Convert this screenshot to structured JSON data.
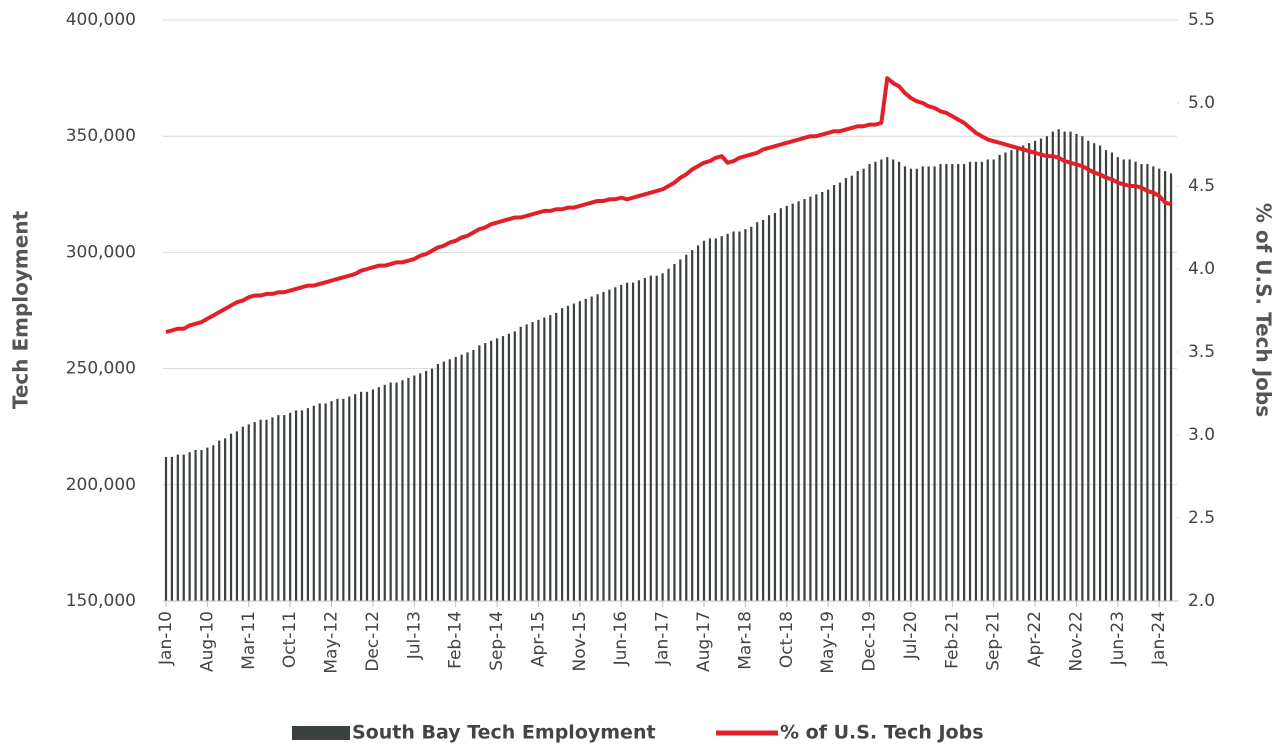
{
  "chart_data": {
    "type": "bar_line",
    "categories": [
      "Jan-10",
      null,
      null,
      null,
      null,
      null,
      null,
      "Aug-10",
      null,
      null,
      null,
      null,
      null,
      null,
      "Mar-11",
      null,
      null,
      null,
      null,
      null,
      null,
      "Oct-11",
      null,
      null,
      null,
      null,
      null,
      null,
      "May-12",
      null,
      null,
      null,
      null,
      null,
      null,
      "Dec-12",
      null,
      null,
      null,
      null,
      null,
      null,
      "Jul-13",
      null,
      null,
      null,
      null,
      null,
      null,
      "Feb-14",
      null,
      null,
      null,
      null,
      null,
      null,
      "Sep-14",
      null,
      null,
      null,
      null,
      null,
      null,
      "Apr-15",
      null,
      null,
      null,
      null,
      null,
      null,
      "Nov-15",
      null,
      null,
      null,
      null,
      null,
      null,
      "Jun-16",
      null,
      null,
      null,
      null,
      null,
      null,
      "Jan-17",
      null,
      null,
      null,
      null,
      null,
      null,
      "Aug-17",
      null,
      null,
      null,
      null,
      null,
      null,
      "Mar-18",
      null,
      null,
      null,
      null,
      null,
      null,
      "Oct-18",
      null,
      null,
      null,
      null,
      null,
      null,
      "May-19",
      null,
      null,
      null,
      null,
      null,
      null,
      "Dec-19",
      null,
      null,
      null,
      null,
      null,
      null,
      "Jul-20",
      null,
      null,
      null,
      null,
      null,
      null,
      "Feb-21",
      null,
      null,
      null,
      null,
      null,
      null,
      "Sep-21",
      null,
      null,
      null,
      null,
      null,
      null,
      "Apr-22",
      null,
      null,
      null,
      null,
      null,
      null,
      "Nov-22",
      null,
      null,
      null,
      null,
      null,
      null,
      "Jun-23",
      null,
      null,
      null,
      null,
      null,
      null,
      "Jan-24",
      null,
      null
    ],
    "series": [
      {
        "name": "South Bay Tech Employment",
        "color": "#3b413c",
        "kind": "bar",
        "values": [
          212000,
          212000,
          213000,
          213000,
          214000,
          215000,
          215000,
          216000,
          217000,
          219000,
          220000,
          222000,
          223000,
          225000,
          226000,
          227000,
          228000,
          228000,
          229000,
          230000,
          230000,
          231000,
          232000,
          232000,
          233000,
          234000,
          235000,
          235000,
          236000,
          237000,
          237000,
          238000,
          239000,
          240000,
          240000,
          241000,
          242000,
          243000,
          244000,
          244000,
          245000,
          246000,
          247000,
          248000,
          249000,
          250000,
          252000,
          253000,
          254000,
          255000,
          256000,
          257000,
          258000,
          260000,
          261000,
          262000,
          263000,
          264000,
          265000,
          266000,
          268000,
          269000,
          270000,
          271000,
          272000,
          273000,
          274000,
          276000,
          277000,
          278000,
          279000,
          280000,
          281000,
          282000,
          283000,
          284000,
          285000,
          286000,
          287000,
          287000,
          288000,
          289000,
          290000,
          290000,
          291000,
          293000,
          295000,
          297000,
          299000,
          301000,
          303000,
          305000,
          306000,
          306000,
          307000,
          308000,
          309000,
          309000,
          310000,
          311000,
          313000,
          314000,
          316000,
          317000,
          319000,
          320000,
          321000,
          322000,
          323000,
          324000,
          325000,
          326000,
          327000,
          329000,
          330000,
          332000,
          333000,
          335000,
          336000,
          338000,
          339000,
          340000,
          341000,
          340000,
          339000,
          337000,
          336000,
          336000,
          337000,
          337000,
          337000,
          338000,
          338000,
          338000,
          338000,
          338000,
          339000,
          339000,
          339000,
          340000,
          340000,
          342000,
          343000,
          344000,
          345000,
          346000,
          347000,
          348000,
          349000,
          350000,
          352000,
          353000,
          352000,
          352000,
          351000,
          350000,
          348000,
          347000,
          346000,
          344000,
          343000,
          341000,
          340000,
          340000,
          339000,
          338000,
          338000,
          337000,
          336000,
          335000,
          334000
        ]
      },
      {
        "name": "% of U.S. Tech Jobs",
        "color": "#e3202a",
        "kind": "line",
        "axis": "y2",
        "values": [
          3.62,
          3.63,
          3.64,
          3.64,
          3.66,
          3.67,
          3.68,
          3.7,
          3.72,
          3.74,
          3.76,
          3.78,
          3.8,
          3.81,
          3.83,
          3.84,
          3.84,
          3.85,
          3.85,
          3.86,
          3.86,
          3.87,
          3.88,
          3.89,
          3.9,
          3.9,
          3.91,
          3.92,
          3.93,
          3.94,
          3.95,
          3.96,
          3.97,
          3.99,
          4.0,
          4.01,
          4.02,
          4.02,
          4.03,
          4.04,
          4.04,
          4.05,
          4.06,
          4.08,
          4.09,
          4.11,
          4.13,
          4.14,
          4.16,
          4.17,
          4.19,
          4.2,
          4.22,
          4.24,
          4.25,
          4.27,
          4.28,
          4.29,
          4.3,
          4.31,
          4.31,
          4.32,
          4.33,
          4.34,
          4.35,
          4.35,
          4.36,
          4.36,
          4.37,
          4.37,
          4.38,
          4.39,
          4.4,
          4.41,
          4.41,
          4.42,
          4.42,
          4.43,
          4.42,
          4.43,
          4.44,
          4.45,
          4.46,
          4.47,
          4.48,
          4.5,
          4.52,
          4.55,
          4.57,
          4.6,
          4.62,
          4.64,
          4.65,
          4.67,
          4.68,
          4.64,
          4.65,
          4.67,
          4.68,
          4.69,
          4.7,
          4.72,
          4.73,
          4.74,
          4.75,
          4.76,
          4.77,
          4.78,
          4.79,
          4.8,
          4.8,
          4.81,
          4.82,
          4.83,
          4.83,
          4.84,
          4.85,
          4.86,
          4.86,
          4.87,
          4.87,
          4.88,
          5.15,
          5.12,
          5.1,
          5.06,
          5.03,
          5.01,
          5.0,
          4.98,
          4.97,
          4.95,
          4.94,
          4.92,
          4.9,
          4.88,
          4.85,
          4.82,
          4.8,
          4.78,
          4.77,
          4.76,
          4.75,
          4.74,
          4.73,
          4.72,
          4.71,
          4.7,
          4.69,
          4.68,
          4.68,
          4.67,
          4.65,
          4.64,
          4.63,
          4.62,
          4.6,
          4.58,
          4.57,
          4.55,
          4.54,
          4.52,
          4.51,
          4.5,
          4.5,
          4.49,
          4.47,
          4.46,
          4.44,
          4.4,
          4.39
        ]
      }
    ],
    "ylabel": "Tech Employment",
    "y2label": "% of U.S. Tech Jobs",
    "ylim": [
      150000,
      400000
    ],
    "yticks": [
      {
        "value": 150000,
        "label": "150,000"
      },
      {
        "value": 200000,
        "label": "200,000"
      },
      {
        "value": 250000,
        "label": "250,000"
      },
      {
        "value": 300000,
        "label": "300,000"
      },
      {
        "value": 350000,
        "label": "350,000"
      },
      {
        "value": 400000,
        "label": "400,000"
      }
    ],
    "y2lim": [
      2,
      5.5
    ],
    "y2ticks": [
      {
        "value": 2,
        "label": "2.0"
      },
      2.5,
      {
        "value": 3,
        "label": "3.0"
      },
      3.5,
      {
        "value": 4,
        "label": "4.0"
      },
      4.5,
      {
        "value": 5,
        "label": "5.0"
      },
      5.5
    ],
    "grid": true,
    "legend": "bottom"
  }
}
